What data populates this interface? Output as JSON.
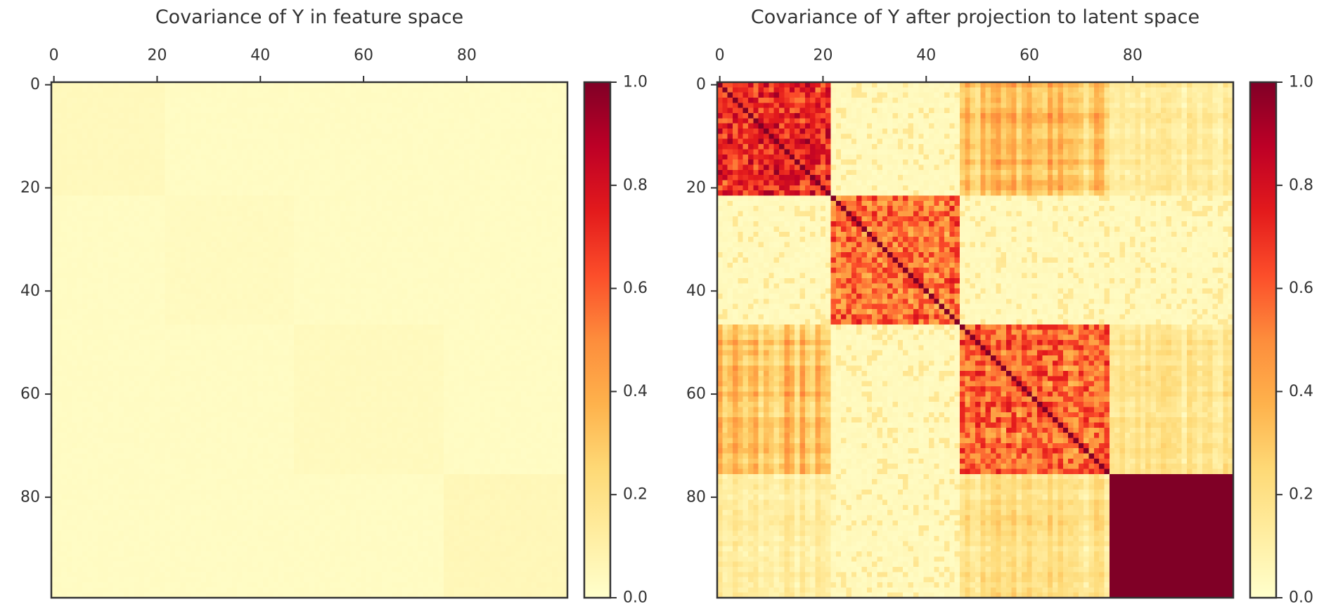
{
  "chart_data": [
    {
      "type": "heatmap",
      "title": "Covariance of Y in feature space",
      "size": 100,
      "x_ticks": [
        0,
        20,
        40,
        60,
        80
      ],
      "y_ticks": [
        0,
        20,
        40,
        60,
        80
      ],
      "x_tick_position": "top",
      "colormap": "YlOrRd",
      "vmin": 0.0,
      "vmax": 1.0,
      "colorbar_ticks": [
        "0.0",
        "0.2",
        "0.4",
        "0.6",
        "0.8",
        "1.0"
      ],
      "blocks": [
        {
          "range": [
            0,
            22
          ],
          "within_value": 0.04
        },
        {
          "range": [
            22,
            47
          ],
          "within_value": 0.03
        },
        {
          "range": [
            47,
            76
          ],
          "within_value": 0.035
        },
        {
          "range": [
            76,
            100
          ],
          "within_value": 0.05
        }
      ],
      "between_value": 0.02
    },
    {
      "type": "heatmap",
      "title": "Covariance of Y after projection to latent space",
      "size": 100,
      "x_ticks": [
        0,
        20,
        40,
        60,
        80
      ],
      "y_ticks": [
        0,
        20,
        40,
        60,
        80
      ],
      "x_tick_position": "top",
      "colormap": "YlOrRd",
      "vmin": 0.0,
      "vmax": 1.0,
      "colorbar_ticks": [
        "0.0",
        "0.2",
        "0.4",
        "0.6",
        "0.8",
        "1.0"
      ],
      "blocks": [
        {
          "range": [
            0,
            22
          ],
          "within_value": 0.82
        },
        {
          "range": [
            22,
            47
          ],
          "within_value": 0.65
        },
        {
          "range": [
            47,
            76
          ],
          "within_value": 0.62
        },
        {
          "range": [
            76,
            100
          ],
          "within_value": 1.0
        }
      ],
      "cross_blocks": [
        {
          "rows": [
            0,
            22
          ],
          "cols": [
            47,
            76
          ],
          "value": 0.3
        },
        {
          "rows": [
            47,
            76
          ],
          "cols": [
            0,
            22
          ],
          "value": 0.3
        },
        {
          "rows": [
            0,
            22
          ],
          "cols": [
            76,
            100
          ],
          "value": 0.12
        },
        {
          "rows": [
            76,
            100
          ],
          "cols": [
            0,
            22
          ],
          "value": 0.12
        },
        {
          "rows": [
            47,
            76
          ],
          "cols": [
            76,
            100
          ],
          "value": 0.15
        },
        {
          "rows": [
            76,
            100
          ],
          "cols": [
            47,
            76
          ],
          "value": 0.18
        }
      ],
      "between_value": 0.04
    }
  ]
}
